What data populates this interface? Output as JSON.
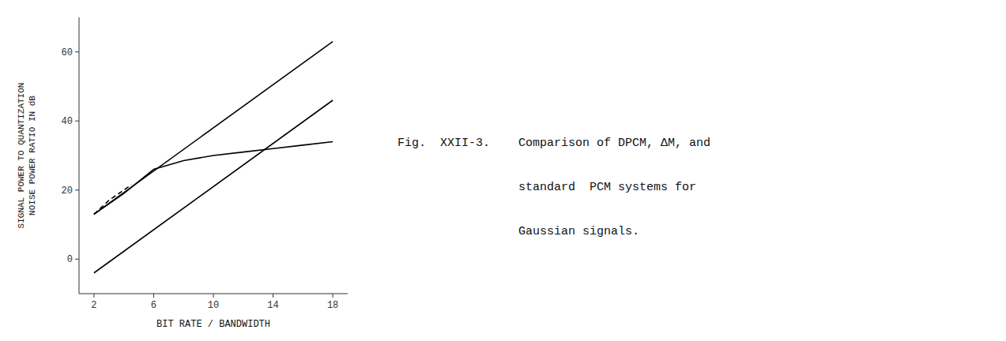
{
  "chart_data": {
    "type": "line",
    "xlabel": "BIT RATE / BANDWIDTH",
    "ylabel": [
      "SIGNAL POWER TO QUANTIZATION",
      "NOISE POWER RATIO IN dB"
    ],
    "annotations": [
      "Fig.  XXII-3.",
      "Comparison of DPCM, ΔM, and",
      "standard  PCM systems for",
      "Gaussian signals."
    ],
    "xlim": [
      1,
      19
    ],
    "ylim": [
      -10,
      70
    ],
    "xticks": [
      2,
      6,
      10,
      14,
      18
    ],
    "yticks": [
      0,
      20,
      40,
      60
    ],
    "grid": false,
    "series": [
      {
        "color": "#000000",
        "line_style": "solid",
        "x": [
          2,
          18
        ],
        "values": [
          13,
          63
        ]
      },
      {
        "color": "#000000",
        "line_style": "solid",
        "x": [
          2,
          18
        ],
        "values": [
          -4,
          46
        ]
      },
      {
        "color": "#000000",
        "line_style": "solid",
        "x": [
          2,
          4,
          6,
          8,
          10,
          12,
          14,
          16,
          18
        ],
        "values": [
          13,
          19,
          26,
          28.5,
          30,
          31,
          32,
          33,
          34
        ]
      },
      {
        "color": "#000000",
        "line_style": "dashed",
        "x": [
          2,
          3,
          4,
          4.5
        ],
        "values": [
          13,
          17,
          20,
          21.5
        ]
      }
    ]
  }
}
